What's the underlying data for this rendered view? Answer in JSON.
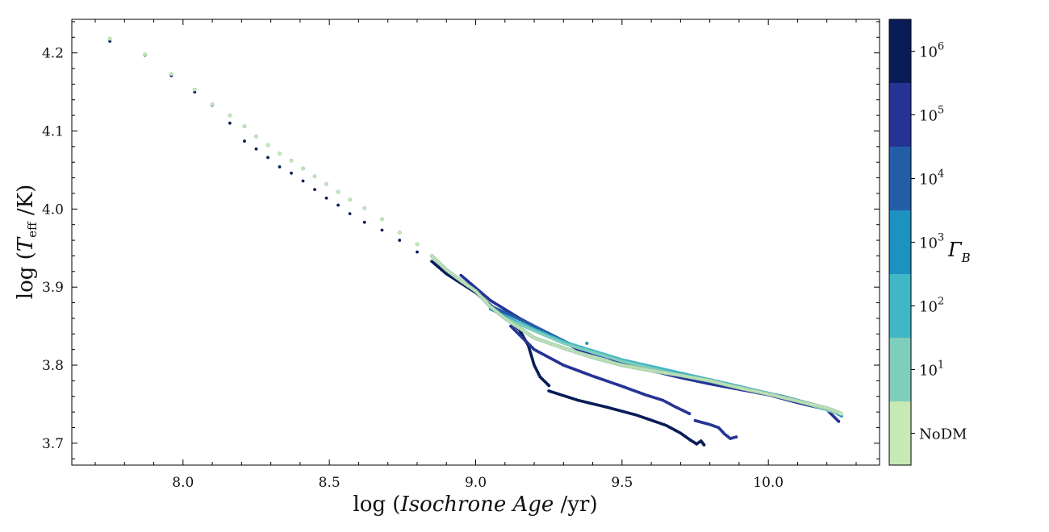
{
  "chart_data": {
    "type": "scatter",
    "title": "",
    "xlabel": {
      "prefix": "log (",
      "italic": "Isochrone Age",
      "suffix": " /yr)"
    },
    "ylabel": {
      "prefix": "log (",
      "var": "T",
      "sub": "eff",
      "suffix": " /K)"
    },
    "xlim": [
      7.62,
      10.38
    ],
    "ylim": [
      3.672,
      4.243
    ],
    "xticks": [
      8.0,
      8.5,
      9.0,
      9.5,
      10.0
    ],
    "xtick_labels": [
      "8.0",
      "8.5",
      "9.0",
      "9.5",
      "10.0"
    ],
    "yticks": [
      3.7,
      3.8,
      3.9,
      4.0,
      4.1,
      4.2
    ],
    "ytick_labels": [
      "3.7",
      "3.8",
      "3.9",
      "4.0",
      "4.1",
      "4.2"
    ],
    "grid": false,
    "colorbar": {
      "label": "Γ",
      "label_sub": "B",
      "levels": [
        {
          "label": "NoDM",
          "color": "#c7e9b4"
        },
        {
          "label": "10",
          "sup": "1",
          "color": "#7fcdbb"
        },
        {
          "label": "10",
          "sup": "2",
          "color": "#41b6c4"
        },
        {
          "label": "10",
          "sup": "3",
          "color": "#1d91c0"
        },
        {
          "label": "10",
          "sup": "4",
          "color": "#225ea8"
        },
        {
          "label": "10",
          "sup": "5",
          "color": "#253494"
        },
        {
          "label": "10",
          "sup": "6",
          "color": "#081d58"
        }
      ]
    },
    "series": [
      {
        "level": 6,
        "segments": [
          [
            [
              7.75,
              4.215
            ],
            [
              7.87,
              4.197
            ],
            [
              7.96,
              4.171
            ],
            [
              8.04,
              4.15
            ],
            [
              8.1,
              4.133
            ],
            [
              8.16,
              4.11
            ],
            [
              8.21,
              4.087
            ],
            [
              8.25,
              4.077
            ],
            [
              8.29,
              4.066
            ],
            [
              8.33,
              4.054
            ],
            [
              8.37,
              4.046
            ],
            [
              8.41,
              4.036
            ],
            [
              8.45,
              4.025
            ],
            [
              8.49,
              4.014
            ],
            [
              8.53,
              4.005
            ],
            [
              8.57,
              3.994
            ],
            [
              8.62,
              3.983
            ],
            [
              8.68,
              3.973
            ],
            [
              8.74,
              3.96
            ],
            [
              8.8,
              3.945
            ],
            [
              8.85,
              3.933
            ],
            [
              8.9,
              3.917
            ],
            [
              8.95,
              3.905
            ],
            [
              9.0,
              3.893
            ],
            [
              9.05,
              3.877
            ],
            [
              9.1,
              3.862
            ],
            [
              9.15,
              3.845
            ],
            [
              9.18,
              3.825
            ],
            [
              9.2,
              3.8
            ],
            [
              9.22,
              3.785
            ],
            [
              9.25,
              3.774
            ]
          ],
          [
            [
              9.25,
              3.767
            ],
            [
              9.35,
              3.755
            ],
            [
              9.45,
              3.746
            ],
            [
              9.55,
              3.736
            ],
            [
              9.65,
              3.723
            ],
            [
              9.7,
              3.713
            ],
            [
              9.73,
              3.705
            ],
            [
              9.755,
              3.699
            ],
            [
              9.77,
              3.703
            ],
            [
              9.78,
              3.698
            ]
          ]
        ]
      },
      {
        "level": 5,
        "segments": [
          [
            [
              8.95,
              3.915
            ],
            [
              9.05,
              3.883
            ],
            [
              9.15,
              3.86
            ],
            [
              9.25,
              3.84
            ],
            [
              9.35,
              3.82
            ],
            [
              9.45,
              3.81
            ],
            [
              9.52,
              3.8
            ],
            [
              9.6,
              3.793
            ],
            [
              9.7,
              3.784
            ],
            [
              9.8,
              3.776
            ],
            [
              9.9,
              3.769
            ],
            [
              10.0,
              3.762
            ],
            [
              10.1,
              3.752
            ],
            [
              10.2,
              3.743
            ],
            [
              10.24,
              3.728
            ]
          ],
          [
            [
              9.12,
              3.85
            ],
            [
              9.2,
              3.82
            ],
            [
              9.3,
              3.8
            ],
            [
              9.4,
              3.786
            ],
            [
              9.5,
              3.773
            ],
            [
              9.58,
              3.762
            ],
            [
              9.64,
              3.755
            ],
            [
              9.68,
              3.747
            ],
            [
              9.73,
              3.738
            ]
          ],
          [
            [
              9.75,
              3.729
            ],
            [
              9.8,
              3.724
            ],
            [
              9.83,
              3.72
            ],
            [
              9.85,
              3.712
            ],
            [
              9.87,
              3.706
            ],
            [
              9.89,
              3.708
            ]
          ]
        ]
      },
      {
        "level": 4,
        "segments": [
          [
            [
              9.05,
              3.876
            ],
            [
              9.2,
              3.85
            ],
            [
              9.35,
              3.822
            ],
            [
              9.5,
              3.805
            ],
            [
              9.6,
              3.796
            ],
            [
              9.75,
              3.783
            ],
            [
              9.9,
              3.772
            ],
            [
              10.05,
              3.76
            ],
            [
              10.15,
              3.75
            ],
            [
              10.25,
              3.738
            ]
          ]
        ]
      },
      {
        "level": 3,
        "segments": [
          [
            [
              9.05,
              3.872
            ],
            [
              9.2,
              3.845
            ],
            [
              9.4,
              3.816
            ],
            [
              9.6,
              3.795
            ],
            [
              9.8,
              3.78
            ],
            [
              10.0,
              3.764
            ],
            [
              10.2,
              3.745
            ],
            [
              10.25,
              3.735
            ]
          ],
          [
            [
              9.38,
              3.828
            ]
          ]
        ]
      },
      {
        "level": 2,
        "segments": [
          [
            [
              9.1,
              3.862
            ],
            [
              9.3,
              3.83
            ],
            [
              9.5,
              3.807
            ],
            [
              9.7,
              3.79
            ],
            [
              9.9,
              3.773
            ],
            [
              10.1,
              3.755
            ],
            [
              10.25,
              3.738
            ]
          ]
        ]
      },
      {
        "level": 1,
        "segments": [
          [
            [
              9.1,
              3.86
            ],
            [
              9.3,
              3.828
            ],
            [
              9.5,
              3.805
            ],
            [
              9.7,
              3.787
            ],
            [
              9.9,
              3.772
            ],
            [
              10.1,
              3.754
            ],
            [
              10.25,
              3.737
            ]
          ]
        ]
      },
      {
        "level": 0,
        "segments": [
          [
            [
              7.75,
              4.218
            ],
            [
              7.87,
              4.198
            ],
            [
              7.96,
              4.173
            ],
            [
              8.04,
              4.153
            ],
            [
              8.1,
              4.134
            ],
            [
              8.16,
              4.12
            ],
            [
              8.21,
              4.106
            ],
            [
              8.25,
              4.093
            ],
            [
              8.29,
              4.082
            ],
            [
              8.33,
              4.071
            ],
            [
              8.37,
              4.062
            ],
            [
              8.41,
              4.052
            ],
            [
              8.45,
              4.042
            ],
            [
              8.49,
              4.032
            ],
            [
              8.53,
              4.022
            ],
            [
              8.57,
              4.012
            ],
            [
              8.62,
              4.001
            ],
            [
              8.68,
              3.987
            ],
            [
              8.74,
              3.97
            ],
            [
              8.8,
              3.955
            ],
            [
              8.85,
              3.94
            ],
            [
              8.9,
              3.922
            ],
            [
              8.95,
              3.908
            ],
            [
              9.0,
              3.895
            ],
            [
              9.05,
              3.875
            ],
            [
              9.1,
              3.86
            ],
            [
              9.2,
              3.835
            ],
            [
              9.3,
              3.822
            ],
            [
              9.4,
              3.81
            ],
            [
              9.5,
              3.8
            ],
            [
              9.6,
              3.793
            ],
            [
              9.7,
              3.787
            ],
            [
              9.8,
              3.78
            ],
            [
              9.9,
              3.771
            ],
            [
              10.0,
              3.763
            ],
            [
              10.1,
              3.754
            ],
            [
              10.2,
              3.745
            ],
            [
              10.25,
              3.738
            ]
          ]
        ]
      }
    ]
  }
}
